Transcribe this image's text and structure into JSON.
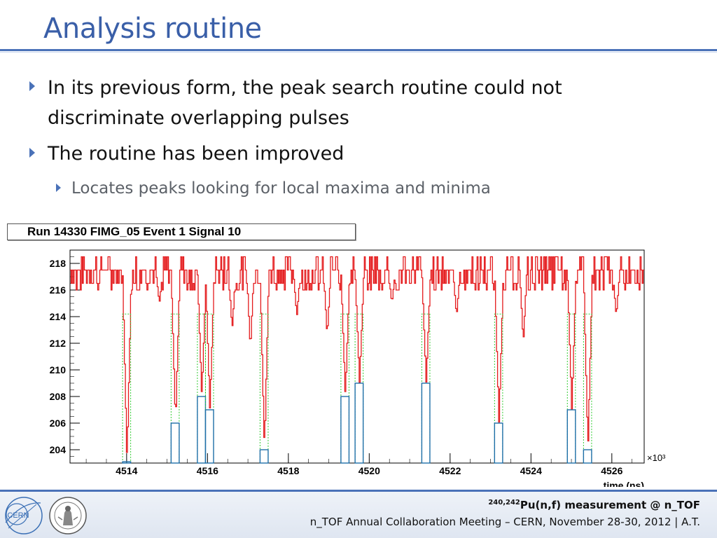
{
  "slide": {
    "title": "Analysis routine",
    "bullets": [
      {
        "level": 1,
        "text": "In its previous form, the peak search routine could not"
      },
      {
        "level": 1,
        "text": "discriminate overlapping pulses"
      },
      {
        "level": 1,
        "text": "The routine has been improved"
      },
      {
        "level": 2,
        "text": "Locates peaks looking for local maxima and minima"
      }
    ]
  },
  "chart_data": {
    "type": "line",
    "title": "Run 14330 FIMG_05 Event 1 Signal 10",
    "xlabel": "time (ns)",
    "x_multiplier": "×10³",
    "ylabel": "",
    "xlim": [
      4512.6,
      4526.8
    ],
    "ylim": [
      203,
      219
    ],
    "xticks": [
      "4514",
      "4516",
      "4518",
      "4520",
      "4522",
      "4524",
      "4526"
    ],
    "yticks": [
      "204",
      "206",
      "208",
      "210",
      "212",
      "214",
      "216",
      "218"
    ],
    "colors": {
      "signal": "#e41a1c",
      "marker": "#1f6fa8",
      "threshold": "#33cc33"
    },
    "peaks": [
      {
        "x": 4514.0,
        "min": 203.1
      },
      {
        "x": 4515.2,
        "min": 206.0
      },
      {
        "x": 4515.85,
        "min": 208.0
      },
      {
        "x": 4516.05,
        "min": 207.0
      },
      {
        "x": 4517.4,
        "min": 204.0
      },
      {
        "x": 4519.4,
        "min": 208.0
      },
      {
        "x": 4519.75,
        "min": 209.0
      },
      {
        "x": 4521.4,
        "min": 209.0
      },
      {
        "x": 4523.2,
        "min": 206.0
      },
      {
        "x": 4525.0,
        "min": 207.0
      },
      {
        "x": 4525.4,
        "min": 204.0
      }
    ],
    "small_dips": [
      {
        "x": 4514.8,
        "min": 215.0
      },
      {
        "x": 4516.6,
        "min": 213.0
      },
      {
        "x": 4517.05,
        "min": 211.5
      },
      {
        "x": 4518.2,
        "min": 214.0
      },
      {
        "x": 4518.95,
        "min": 212.5
      },
      {
        "x": 4520.55,
        "min": 215.0
      },
      {
        "x": 4522.15,
        "min": 214.0
      },
      {
        "x": 4523.8,
        "min": 212.0
      },
      {
        "x": 4526.1,
        "min": 214.0
      }
    ],
    "baseline": 217.5
  },
  "footer": {
    "superscript": "240,242",
    "line1": "Pu(n,f) measurement @ n_TOF",
    "line2": "n_TOF Annual Collaboration Meeting – CERN, November 28-30, 2012 | A.T.",
    "logo_left": "CERN"
  }
}
